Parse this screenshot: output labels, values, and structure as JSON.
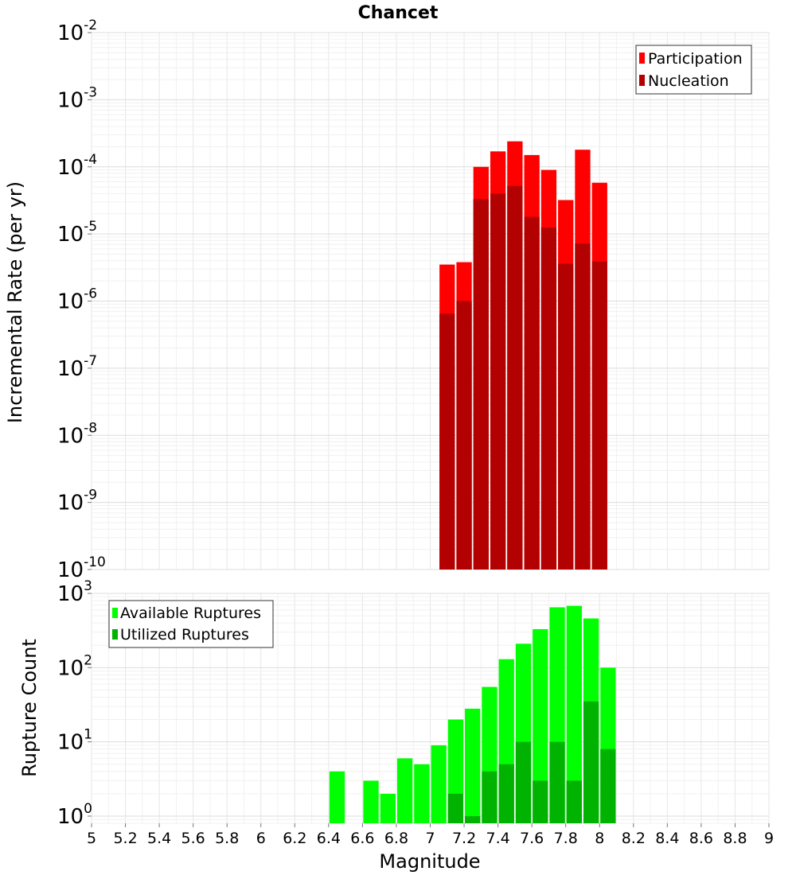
{
  "chart_data": [
    {
      "type": "bar",
      "title": "Chancet",
      "xlabel": "",
      "ylabel": "Incremental Rate (per yr)",
      "yscale": "log",
      "ylim": [
        1e-10,
        0.01
      ],
      "xlim": [
        5,
        9
      ],
      "grid": true,
      "legend_position": "top-right",
      "ytick_labels": [
        {
          "base": "10",
          "exp": "-10",
          "value": 1e-10
        },
        {
          "base": "10",
          "exp": "-9",
          "value": 1e-09
        },
        {
          "base": "10",
          "exp": "-8",
          "value": 1e-08
        },
        {
          "base": "10",
          "exp": "-7",
          "value": 1e-07
        },
        {
          "base": "10",
          "exp": "-6",
          "value": 1e-06
        },
        {
          "base": "10",
          "exp": "-5",
          "value": 1e-05
        },
        {
          "base": "10",
          "exp": "-4",
          "value": 0.0001
        },
        {
          "base": "10",
          "exp": "-3",
          "value": 0.001
        },
        {
          "base": "10",
          "exp": "-2",
          "value": 0.01
        }
      ],
      "x": [
        7.1,
        7.2,
        7.3,
        7.4,
        7.5,
        7.6,
        7.7,
        7.8,
        7.9,
        8.0
      ],
      "series": [
        {
          "name": "Participation",
          "color": "#ff0000",
          "values": [
            3.5e-06,
            3.8e-06,
            0.0001,
            0.00017,
            0.00024,
            0.00015,
            9e-05,
            3.2e-05,
            0.00018,
            5.8e-05
          ]
        },
        {
          "name": "Nucleation",
          "color": "#b30000",
          "values": [
            6.5e-07,
            1e-06,
            3.3e-05,
            4e-05,
            5.2e-05,
            1.8e-05,
            1.25e-05,
            3.6e-06,
            7.2e-06,
            3.9e-06
          ]
        }
      ]
    },
    {
      "type": "bar",
      "title": "",
      "xlabel": "Magnitude",
      "ylabel": "Rupture Count",
      "yscale": "log",
      "ylim": [
        0.8,
        1000
      ],
      "xlim": [
        5,
        9
      ],
      "grid": true,
      "legend_position": "top-left",
      "ytick_labels": [
        {
          "base": "10",
          "exp": "0",
          "value": 1
        },
        {
          "base": "10",
          "exp": "1",
          "value": 10
        },
        {
          "base": "10",
          "exp": "2",
          "value": 100
        },
        {
          "base": "10",
          "exp": "3",
          "value": 1000
        }
      ],
      "xtick_labels": [
        "5",
        "5.2",
        "5.4",
        "5.6",
        "5.8",
        "6",
        "6.2",
        "6.4",
        "6.6",
        "6.8",
        "7",
        "7.2",
        "7.4",
        "7.6",
        "7.8",
        "8",
        "8.2",
        "8.4",
        "8.6",
        "8.8",
        "9"
      ],
      "x": [
        6.45,
        6.65,
        6.75,
        6.85,
        6.95,
        7.05,
        7.15,
        7.25,
        7.35,
        7.45,
        7.55,
        7.65,
        7.75,
        7.85,
        7.95,
        8.05
      ],
      "series": [
        {
          "name": "Available Ruptures",
          "color": "#00ff00",
          "values": [
            4,
            3,
            2,
            6,
            5,
            9,
            20,
            28,
            55,
            130,
            210,
            330,
            650,
            680,
            460,
            100
          ]
        },
        {
          "name": "Utilized Ruptures",
          "color": "#00b300",
          "values": [
            0,
            0,
            0,
            0,
            0,
            0,
            2,
            1,
            4,
            5,
            10,
            3,
            10,
            3,
            35,
            8
          ]
        }
      ]
    }
  ]
}
